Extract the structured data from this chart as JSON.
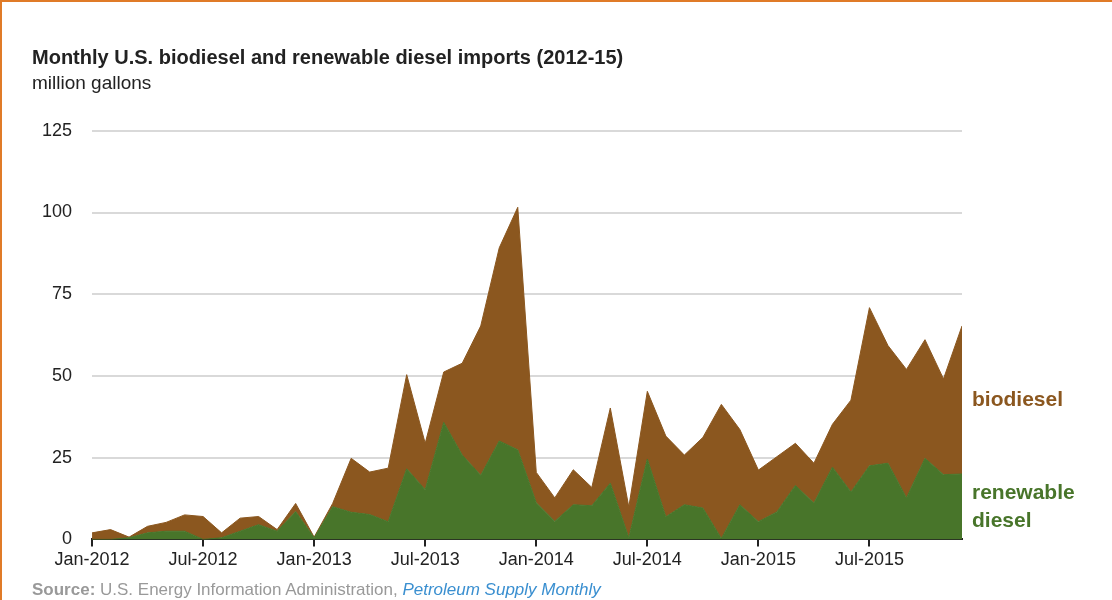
{
  "chart_data": {
    "type": "area",
    "title": "Monthly U.S. biodiesel and renewable diesel imports (2012-15)",
    "ylabel": "million gallons",
    "stacked": true,
    "legend": false,
    "grid": "y",
    "x": [
      "2012-01",
      "2012-02",
      "2012-03",
      "2012-04",
      "2012-05",
      "2012-06",
      "2012-07",
      "2012-08",
      "2012-09",
      "2012-10",
      "2012-11",
      "2012-12",
      "2013-01",
      "2013-02",
      "2013-03",
      "2013-04",
      "2013-05",
      "2013-06",
      "2013-07",
      "2013-08",
      "2013-09",
      "2013-10",
      "2013-11",
      "2013-12",
      "2014-01",
      "2014-02",
      "2014-03",
      "2014-04",
      "2014-05",
      "2014-06",
      "2014-07",
      "2014-08",
      "2014-09",
      "2014-10",
      "2014-11",
      "2014-12",
      "2015-01",
      "2015-02",
      "2015-03",
      "2015-04",
      "2015-05",
      "2015-06",
      "2015-07",
      "2015-08",
      "2015-09",
      "2015-10",
      "2015-11",
      "2015-12"
    ],
    "series": [
      {
        "name": "renewable diesel",
        "color": "#48752a",
        "values": [
          0,
          0,
          0.5,
          2,
          2.5,
          2.5,
          0,
          0.5,
          2.5,
          4.5,
          2.5,
          8.5,
          0.5,
          10,
          8.3,
          7.6,
          5.4,
          21.6,
          15.2,
          35.8,
          25.8,
          19.6,
          30.1,
          27.4,
          11.2,
          5.5,
          10.6,
          10.3,
          17.2,
          0.5,
          24.6,
          6.9,
          10.6,
          9.6,
          0.3,
          10.6,
          5.4,
          8.4,
          16.5,
          11.1,
          22.1,
          14.5,
          22.5,
          23.3,
          12.7,
          24.8,
          19.8,
          20
        ]
      },
      {
        "name": "biodiesel",
        "color": "#8b571f",
        "values": [
          2,
          3,
          0.2,
          2,
          2.7,
          5,
          7,
          1.5,
          4,
          2.5,
          0.5,
          2.5,
          0.2,
          1,
          16.5,
          13,
          16.4,
          28.8,
          14.2,
          15.4,
          28.1,
          45.7,
          59.1,
          74.2,
          9.3,
          7.2,
          10.7,
          5.6,
          23,
          9.4,
          20.7,
          24.7,
          15.2,
          21.6,
          41,
          23,
          15.8,
          16.9,
          12.9,
          12.2,
          13.1,
          28.1,
          48.4,
          36,
          39.3,
          36.3,
          29.3,
          45.3
        ]
      }
    ],
    "xlim": [
      "2012-01",
      "2015-12"
    ],
    "xticks": [
      {
        "value": "2012-01",
        "label": "Jan-2012"
      },
      {
        "value": "2012-07",
        "label": "Jul-2012"
      },
      {
        "value": "2013-01",
        "label": "Jan-2013"
      },
      {
        "value": "2013-07",
        "label": "Jul-2013"
      },
      {
        "value": "2014-01",
        "label": "Jan-2014"
      },
      {
        "value": "2014-07",
        "label": "Jul-2014"
      },
      {
        "value": "2015-01",
        "label": "Jan-2015"
      },
      {
        "value": "2015-07",
        "label": "Jul-2015"
      }
    ],
    "ylim": [
      0,
      125
    ],
    "yticks": [
      0,
      25,
      50,
      75,
      100,
      125
    ],
    "annotations": [
      "Source: U.S. Energy Information Administration, Petroleum Supply Monthly"
    ]
  }
}
